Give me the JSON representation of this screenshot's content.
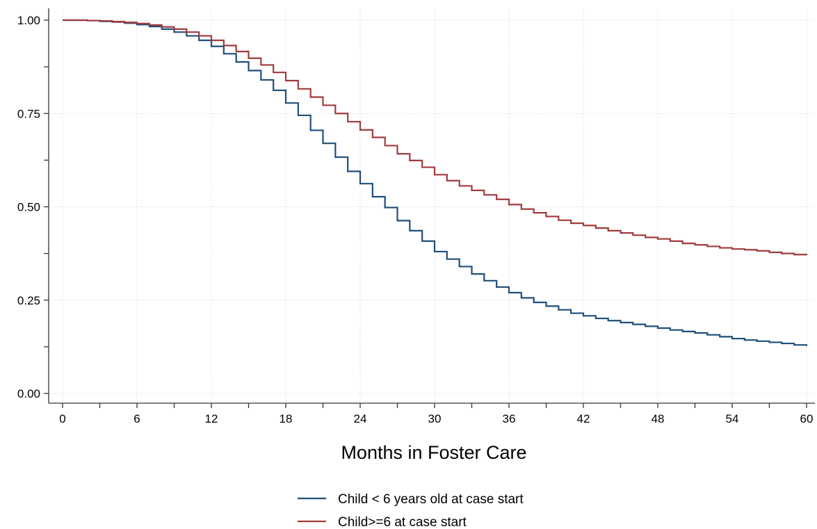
{
  "chart_data": {
    "type": "line",
    "step": true,
    "title": "",
    "xlabel": "Months in Foster Care",
    "ylabel": "",
    "xlim": [
      0,
      60
    ],
    "ylim": [
      0,
      1
    ],
    "xticks": [
      0,
      6,
      12,
      18,
      24,
      30,
      36,
      42,
      48,
      54,
      60
    ],
    "xtick_labels": [
      "0",
      "6",
      "12",
      "18",
      "24",
      "30",
      "36",
      "42",
      "48",
      "54",
      "60"
    ],
    "yticks": [
      0,
      0.25,
      0.5,
      0.75,
      1.0
    ],
    "ytick_labels": [
      "0.00",
      "0.25",
      "0.50",
      "0.75",
      "1.00"
    ],
    "grid": true,
    "legend_position": "bottom",
    "series": [
      {
        "name": "Child < 6 years old at case start",
        "color": "#1f4e79",
        "x": [
          0,
          1,
          2,
          3,
          4,
          5,
          6,
          7,
          8,
          9,
          10,
          11,
          12,
          13,
          14,
          15,
          16,
          17,
          18,
          19,
          20,
          21,
          22,
          23,
          24,
          25,
          26,
          27,
          28,
          29,
          30,
          31,
          32,
          33,
          34,
          35,
          36,
          37,
          38,
          39,
          40,
          41,
          42,
          43,
          44,
          45,
          46,
          47,
          48,
          49,
          50,
          51,
          52,
          53,
          54,
          55,
          56,
          57,
          58,
          59,
          60
        ],
        "y": [
          1.0,
          1.0,
          0.999,
          0.997,
          0.995,
          0.992,
          0.988,
          0.983,
          0.976,
          0.968,
          0.958,
          0.946,
          0.93,
          0.91,
          0.888,
          0.865,
          0.84,
          0.812,
          0.778,
          0.745,
          0.705,
          0.67,
          0.633,
          0.595,
          0.562,
          0.527,
          0.498,
          0.463,
          0.436,
          0.408,
          0.38,
          0.36,
          0.34,
          0.32,
          0.302,
          0.285,
          0.27,
          0.256,
          0.244,
          0.234,
          0.224,
          0.215,
          0.208,
          0.201,
          0.195,
          0.19,
          0.185,
          0.18,
          0.175,
          0.17,
          0.166,
          0.162,
          0.157,
          0.152,
          0.147,
          0.143,
          0.14,
          0.137,
          0.134,
          0.13,
          0.127
        ]
      },
      {
        "name": "Child>=6 at case start",
        "color": "#a03a3e",
        "x": [
          0,
          1,
          2,
          3,
          4,
          5,
          6,
          7,
          8,
          9,
          10,
          11,
          12,
          13,
          14,
          15,
          16,
          17,
          18,
          19,
          20,
          21,
          22,
          23,
          24,
          25,
          26,
          27,
          28,
          29,
          30,
          31,
          32,
          33,
          34,
          35,
          36,
          37,
          38,
          39,
          40,
          41,
          42,
          43,
          44,
          45,
          46,
          47,
          48,
          49,
          50,
          51,
          52,
          53,
          54,
          55,
          56,
          57,
          58,
          59,
          60
        ],
        "y": [
          1.0,
          1.0,
          0.999,
          0.998,
          0.996,
          0.994,
          0.991,
          0.987,
          0.982,
          0.976,
          0.968,
          0.958,
          0.946,
          0.932,
          0.916,
          0.898,
          0.88,
          0.86,
          0.838,
          0.816,
          0.794,
          0.772,
          0.75,
          0.728,
          0.706,
          0.686,
          0.664,
          0.642,
          0.624,
          0.606,
          0.586,
          0.57,
          0.556,
          0.544,
          0.532,
          0.52,
          0.506,
          0.494,
          0.484,
          0.474,
          0.464,
          0.456,
          0.45,
          0.443,
          0.436,
          0.43,
          0.424,
          0.418,
          0.414,
          0.408,
          0.402,
          0.398,
          0.394,
          0.39,
          0.387,
          0.385,
          0.382,
          0.378,
          0.375,
          0.372,
          0.37
        ]
      }
    ]
  }
}
